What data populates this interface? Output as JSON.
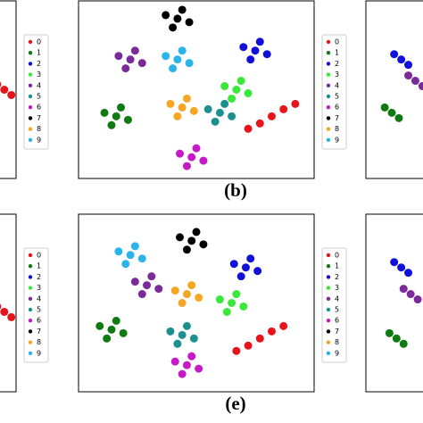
{
  "chart_data": [
    {
      "type": "scatter",
      "xlim": [
        0,
        100
      ],
      "ylim": [
        0,
        100
      ],
      "series": [
        {
          "name": "0",
          "color": "#e8141c",
          "x": [
            95,
            92,
            98
          ],
          "values": [
            50,
            53,
            47
          ]
        },
        {
          "name": "1",
          "color": "#0f7a12",
          "x": [],
          "values": []
        },
        {
          "name": "2",
          "color": "#1010d8",
          "x": [],
          "values": []
        },
        {
          "name": "3",
          "color": "#3ae83a",
          "x": [],
          "values": []
        },
        {
          "name": "4",
          "color": "#7b2a9a",
          "x": [],
          "values": []
        },
        {
          "name": "5",
          "color": "#1c8f8f",
          "x": [],
          "values": []
        },
        {
          "name": "6",
          "color": "#c61ac6",
          "x": [],
          "values": []
        },
        {
          "name": "7",
          "color": "#000000",
          "x": [],
          "values": []
        },
        {
          "name": "8",
          "color": "#f5a623",
          "x": [],
          "values": []
        },
        {
          "name": "9",
          "color": "#2ab4ea",
          "x": [],
          "values": []
        }
      ]
    },
    {
      "type": "scatter",
      "label": "(b)",
      "xlim": [
        0,
        100
      ],
      "ylim": [
        0,
        100
      ],
      "series": [
        {
          "name": "0",
          "color": "#e8141c",
          "x": [
            82,
            72,
            92,
            77,
            87
          ],
          "values": [
            35,
            28,
            42,
            31,
            39
          ]
        },
        {
          "name": "1",
          "color": "#0f7a12",
          "x": [
            16,
            11,
            21,
            14,
            18
          ],
          "values": [
            35,
            37,
            33,
            30,
            40
          ]
        },
        {
          "name": "2",
          "color": "#1010d8",
          "x": [
            75,
            70,
            80,
            73,
            77
          ],
          "values": [
            72,
            74,
            70,
            67,
            77
          ]
        },
        {
          "name": "3",
          "color": "#3ae83a",
          "x": [
            67,
            62,
            72,
            65,
            69
          ],
          "values": [
            50,
            52,
            48,
            45,
            55
          ]
        },
        {
          "name": "4",
          "color": "#7b2a9a",
          "x": [
            22,
            17,
            27,
            20,
            24
          ],
          "values": [
            67,
            69,
            65,
            62,
            72
          ]
        },
        {
          "name": "5",
          "color": "#1c8f8f",
          "x": [
            60,
            55,
            65,
            58,
            62
          ],
          "values": [
            37,
            39,
            35,
            32,
            42
          ]
        },
        {
          "name": "6",
          "color": "#c61ac6",
          "x": [
            48,
            43,
            53,
            46,
            50
          ],
          "values": [
            12,
            14,
            10,
            7,
            17
          ]
        },
        {
          "name": "7",
          "color": "#000000",
          "x": [
            42,
            37,
            47,
            40,
            44
          ],
          "values": [
            90,
            92,
            88,
            85,
            95
          ]
        },
        {
          "name": "8",
          "color": "#f5a623",
          "x": [
            44,
            39,
            49,
            42,
            46
          ],
          "values": [
            40,
            42,
            38,
            35,
            45
          ]
        },
        {
          "name": "9",
          "color": "#2ab4ea",
          "x": [
            42,
            37,
            47,
            40,
            44
          ],
          "values": [
            67,
            69,
            65,
            62,
            72
          ]
        }
      ]
    },
    {
      "type": "scatter",
      "xlim": [
        0,
        100
      ],
      "ylim": [
        0,
        100
      ],
      "series": [
        {
          "color": "#7b2a9a",
          "x": [
            21,
            18,
            24
          ],
          "values": [
            55,
            58,
            52
          ]
        },
        {
          "color": "#1010d8",
          "x": [
            15,
            12,
            18
          ],
          "values": [
            67,
            70,
            64
          ]
        },
        {
          "color": "#0f7a12",
          "x": [
            11,
            8,
            14
          ],
          "values": [
            37,
            40,
            34
          ]
        }
      ]
    },
    {
      "type": "scatter",
      "xlim": [
        0,
        100
      ],
      "ylim": [
        0,
        100
      ],
      "series": [
        {
          "name": "0",
          "color": "#e8141c",
          "x": [
            95,
            92,
            98
          ],
          "values": [
            45,
            48,
            42
          ]
        },
        {
          "name": "1",
          "color": "#0f7a12",
          "x": [],
          "values": []
        },
        {
          "name": "2",
          "color": "#1010d8",
          "x": [],
          "values": []
        },
        {
          "name": "3",
          "color": "#3ae83a",
          "x": [],
          "values": []
        },
        {
          "name": "4",
          "color": "#7b2a9a",
          "x": [],
          "values": []
        },
        {
          "name": "5",
          "color": "#1c8f8f",
          "x": [],
          "values": []
        },
        {
          "name": "6",
          "color": "#c61ac6",
          "x": [],
          "values": []
        },
        {
          "name": "7",
          "color": "#000000",
          "x": [],
          "values": []
        },
        {
          "name": "8",
          "color": "#f5a623",
          "x": [],
          "values": []
        },
        {
          "name": "9",
          "color": "#2ab4ea",
          "x": [],
          "values": []
        }
      ]
    },
    {
      "type": "scatter",
      "label": "(e)",
      "xlim": [
        0,
        100
      ],
      "ylim": [
        0,
        100
      ],
      "series": [
        {
          "name": "0",
          "color": "#e8141c",
          "x": [
            77,
            67,
            87,
            72,
            82
          ],
          "values": [
            30,
            23,
            37,
            26,
            34
          ]
        },
        {
          "name": "1",
          "color": "#0f7a12",
          "x": [
            14,
            9,
            19,
            12,
            16
          ],
          "values": [
            35,
            37,
            33,
            30,
            40
          ]
        },
        {
          "name": "2",
          "color": "#1010d8",
          "x": [
            71,
            66,
            76,
            69,
            73
          ],
          "values": [
            70,
            72,
            68,
            65,
            75
          ]
        },
        {
          "name": "3",
          "color": "#3ae83a",
          "x": [
            65,
            60,
            70,
            63,
            67
          ],
          "values": [
            50,
            52,
            48,
            45,
            55
          ]
        },
        {
          "name": "4",
          "color": "#7b2a9a",
          "x": [
            29,
            24,
            34,
            27,
            31
          ],
          "values": [
            60,
            62,
            58,
            55,
            65
          ]
        },
        {
          "name": "5",
          "color": "#1c8f8f",
          "x": [
            44,
            39,
            49,
            42,
            46
          ],
          "values": [
            32,
            34,
            30,
            27,
            37
          ]
        },
        {
          "name": "6",
          "color": "#c61ac6",
          "x": [
            46,
            41,
            51,
            44,
            48
          ],
          "values": [
            15,
            17,
            13,
            10,
            20
          ]
        },
        {
          "name": "7",
          "color": "#000000",
          "x": [
            48,
            43,
            53,
            46,
            50
          ],
          "values": [
            85,
            87,
            83,
            80,
            90
          ]
        },
        {
          "name": "8",
          "color": "#f5a623",
          "x": [
            46,
            41,
            51,
            44,
            48
          ],
          "values": [
            55,
            57,
            53,
            50,
            60
          ]
        },
        {
          "name": "9",
          "color": "#2ab4ea",
          "x": [
            22,
            17,
            27,
            20,
            24
          ],
          "values": [
            77,
            79,
            75,
            72,
            82
          ]
        }
      ]
    },
    {
      "type": "scatter",
      "xlim": [
        0,
        100
      ],
      "ylim": [
        0,
        100
      ],
      "series": [
        {
          "color": "#1010d8",
          "x": [
            15,
            12,
            18
          ],
          "values": [
            70,
            73,
            67
          ]
        },
        {
          "color": "#7b2a9a",
          "x": [
            19,
            16,
            22
          ],
          "values": [
            55,
            58,
            52
          ]
        },
        {
          "color": "#0f7a12",
          "x": [
            13,
            10,
            16
          ],
          "values": [
            30,
            33,
            27
          ]
        }
      ]
    }
  ]
}
